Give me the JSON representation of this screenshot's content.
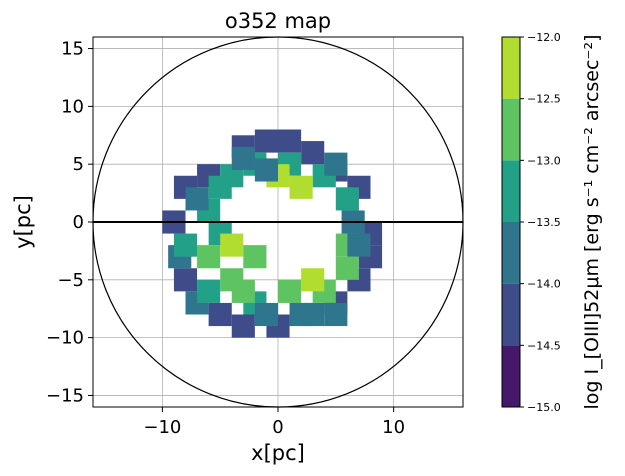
{
  "chart_data": {
    "type": "heatmap",
    "title": "o352 map",
    "xlabel": "x[pc]",
    "ylabel": "y[pc]",
    "xlim": [
      -16,
      16
    ],
    "ylim": [
      -16,
      16
    ],
    "xticks": [
      -10,
      0,
      10
    ],
    "xtick_labels": [
      "−10",
      "0",
      "10"
    ],
    "yticks": [
      -15,
      -10,
      -5,
      0,
      5,
      10,
      15
    ],
    "ytick_labels": [
      "−15",
      "−10",
      "−5",
      "0",
      "5",
      "10",
      "15"
    ],
    "grid": true,
    "circle_radius": 16,
    "horizontal_line_y": 0,
    "colorbar": {
      "label": "log I_[OIII]52μm [erg s⁻¹ cm⁻² arcsec⁻²]",
      "levels": [
        -15.0,
        -14.5,
        -14.0,
        -13.5,
        -13.0,
        -12.5,
        -12.0
      ],
      "tick_labels": [
        "−15.0",
        "−14.5",
        "−14.0",
        "−13.5",
        "−13.0",
        "−12.5",
        "−12.0"
      ],
      "colors": [
        "#46186b",
        "#3e4c8a",
        "#2f758e",
        "#23a188",
        "#5ec462",
        "#b0dd2f",
        "#c8e020"
      ]
    },
    "data": {
      "description_free": true,
      "cells": [
        [
          -3,
          6.5,
          -14.3
        ],
        [
          -1,
          7,
          -14.3
        ],
        [
          1,
          7,
          -14.3
        ],
        [
          3,
          6,
          -14.2
        ],
        [
          5,
          4.5,
          -14.2
        ],
        [
          7,
          3,
          -14.4
        ],
        [
          -6,
          4,
          -14.1
        ],
        [
          -8,
          3,
          -14.3
        ],
        [
          -9,
          0,
          -14.4
        ],
        [
          -8.5,
          -3,
          -14.0
        ],
        [
          -8,
          -5,
          -14.2
        ],
        [
          -7,
          -7,
          -14.0
        ],
        [
          -5,
          -8,
          -14.3
        ],
        [
          -3,
          -9,
          -14.4
        ],
        [
          0,
          -9,
          -14.3
        ],
        [
          3,
          -8,
          -14.0
        ],
        [
          5,
          -7,
          -14.2
        ],
        [
          7,
          -5,
          -14.1
        ],
        [
          8,
          -3,
          -14.2
        ],
        [
          8,
          -1,
          -14.4
        ],
        [
          -4,
          4,
          -13.3
        ],
        [
          -2,
          5,
          -13.2
        ],
        [
          1,
          5,
          -13.4
        ],
        [
          4,
          4,
          -13.1
        ],
        [
          6,
          2,
          -13.4
        ],
        [
          -6,
          1,
          -13.2
        ],
        [
          -5,
          -1,
          -13.1
        ],
        [
          -6,
          -3,
          -12.8
        ],
        [
          -4,
          -5,
          -12.9
        ],
        [
          -2,
          -7,
          -13.2
        ],
        [
          1,
          -6,
          -13.0
        ],
        [
          4,
          -6,
          -12.6
        ],
        [
          6,
          -4,
          -13.0
        ],
        [
          6,
          -2,
          -12.8
        ],
        [
          3,
          -5,
          -12.3
        ],
        [
          -4,
          -2,
          -12.4
        ],
        [
          0,
          4,
          -12.3
        ],
        [
          2,
          3,
          -12.2
        ],
        [
          -3,
          5.5,
          -13.6
        ],
        [
          5,
          5,
          -13.6
        ],
        [
          -7,
          2,
          -13.7
        ],
        [
          7,
          -2,
          -13.6
        ],
        [
          -1,
          -8,
          -13.6
        ],
        [
          5,
          -8,
          -13.7
        ],
        [
          -8,
          -2,
          -13.5
        ],
        [
          -2,
          -3,
          -13.0
        ],
        [
          -1,
          4.5,
          -13.8
        ],
        [
          -5,
          3,
          -13.5
        ],
        [
          6.5,
          0,
          -13.7
        ],
        [
          2,
          -8,
          -13.8
        ],
        [
          -6,
          -6,
          -13.4
        ],
        [
          -3,
          -6,
          -12.7
        ]
      ]
    }
  }
}
